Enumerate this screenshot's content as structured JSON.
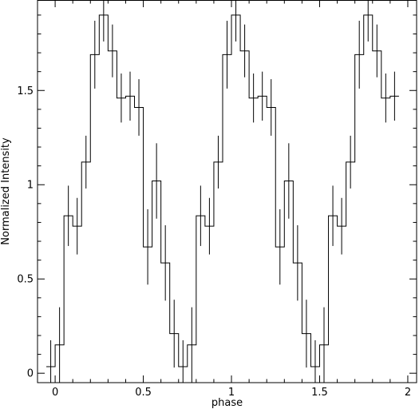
{
  "chart_data": {
    "type": "line",
    "title": "",
    "xlabel": "phase",
    "ylabel": "Normalized Intensity",
    "xlim": [
      -0.1,
      2.05
    ],
    "ylim": [
      -0.05,
      1.98
    ],
    "grid": false,
    "legend": "none",
    "colors": {
      "line": "#000000",
      "axes": "#000000"
    },
    "bin_width": 0.05,
    "x_ticks": [
      {
        "value": 0,
        "label": "0"
      },
      {
        "value": 0.5,
        "label": "0.5"
      },
      {
        "value": 1,
        "label": "1"
      },
      {
        "value": 1.5,
        "label": "1.5"
      },
      {
        "value": 2,
        "label": "2"
      }
    ],
    "y_ticks": [
      {
        "value": 0,
        "label": "0"
      },
      {
        "value": 0.5,
        "label": "0.5"
      },
      {
        "value": 1,
        "label": "1"
      },
      {
        "value": 1.5,
        "label": "1.5"
      }
    ],
    "series": [
      {
        "type": "step",
        "x": [
          -0.025,
          0.025,
          0.075,
          0.125,
          0.175,
          0.225,
          0.275,
          0.325,
          0.375,
          0.425,
          0.475,
          0.525,
          0.575,
          0.625,
          0.675,
          0.725,
          0.775,
          0.825,
          0.875,
          0.925,
          0.975,
          1.025,
          1.075,
          1.125,
          1.175,
          1.225,
          1.275,
          1.325,
          1.375,
          1.425,
          1.475,
          1.525,
          1.575,
          1.625,
          1.675,
          1.725,
          1.775,
          1.825,
          1.875,
          1.925
        ],
        "y": [
          0.035,
          0.15,
          0.835,
          0.78,
          1.12,
          1.69,
          1.9,
          1.71,
          1.46,
          1.47,
          1.41,
          0.67,
          1.02,
          0.585,
          0.21,
          0.035,
          0.15,
          0.835,
          0.78,
          1.12,
          1.69,
          1.9,
          1.71,
          1.46,
          1.47,
          1.41,
          0.67,
          1.02,
          0.585,
          0.21,
          0.035,
          0.15,
          0.835,
          0.78,
          1.12,
          1.69,
          1.9,
          1.71,
          1.46,
          1.47
        ],
        "y_err": [
          0.14,
          0.2,
          0.16,
          0.15,
          0.14,
          0.18,
          0.14,
          0.14,
          0.13,
          0.13,
          0.15,
          0.2,
          0.2,
          0.2,
          0.18,
          0.14,
          0.2,
          0.16,
          0.15,
          0.14,
          0.18,
          0.14,
          0.14,
          0.13,
          0.13,
          0.15,
          0.2,
          0.2,
          0.2,
          0.18,
          0.14,
          0.2,
          0.16,
          0.15,
          0.14,
          0.18,
          0.14,
          0.14,
          0.13,
          0.13
        ]
      }
    ]
  }
}
